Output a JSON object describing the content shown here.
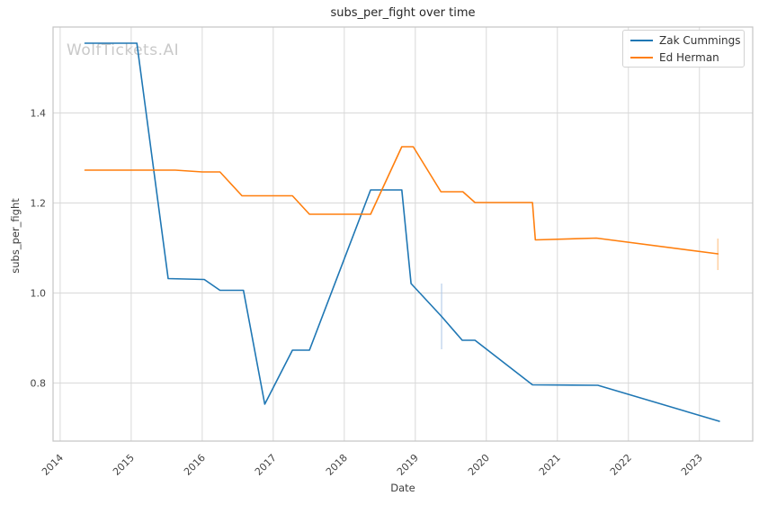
{
  "watermark": "WolfTickets.AI",
  "chart_data": {
    "type": "line",
    "title": "subs_per_fight over time",
    "xlabel": "Date",
    "ylabel": "subs_per_fight",
    "x_tick_labels": [
      "2014",
      "2015",
      "2016",
      "2017",
      "2018",
      "2019",
      "2020",
      "2021",
      "2022",
      "2023"
    ],
    "x_tick_values": [
      2014,
      2015,
      2016,
      2017,
      2018,
      2019,
      2020,
      2021,
      2022,
      2023
    ],
    "y_tick_labels": [
      "0.8",
      "1.0",
      "1.2",
      "1.4"
    ],
    "y_tick_values": [
      0.8,
      1.0,
      1.2,
      1.4
    ],
    "xlim": [
      2013.9,
      2023.75
    ],
    "ylim": [
      0.671,
      1.591
    ],
    "grid": true,
    "legend_position": "upper right",
    "grid_color": "#d9d9d9",
    "spine_color": "#c4c4c4",
    "series": [
      {
        "name": "Zak Cummings",
        "color": "#1f77b4",
        "x": [
          2014.35,
          2015.08,
          2015.52,
          2016.03,
          2016.25,
          2016.58,
          2016.88,
          2017.27,
          2017.51,
          2018.37,
          2018.81,
          2018.94,
          2019.37,
          2019.66,
          2019.84,
          2020.65,
          2021.57,
          2023.28
        ],
        "y": [
          1.555,
          1.555,
          1.032,
          1.03,
          1.006,
          1.006,
          0.753,
          0.873,
          0.873,
          1.229,
          1.229,
          1.021,
          0.948,
          0.895,
          0.895,
          0.796,
          0.795,
          0.715
        ]
      },
      {
        "name": "Ed Herman",
        "color": "#ff7f0e",
        "x": [
          2014.35,
          2015.62,
          2016.0,
          2016.25,
          2016.56,
          2017.27,
          2017.51,
          2018.37,
          2018.81,
          2018.97,
          2019.36,
          2019.67,
          2019.84,
          2020.65,
          2020.69,
          2021.55,
          2023.26
        ],
        "y": [
          1.273,
          1.273,
          1.269,
          1.269,
          1.216,
          1.216,
          1.175,
          1.175,
          1.325,
          1.325,
          1.225,
          1.225,
          1.201,
          1.201,
          1.118,
          1.122,
          1.087
        ]
      }
    ],
    "error_bars": [
      {
        "series": "Zak Cummings",
        "x": 2019.37,
        "y_low": 0.875,
        "y_high": 1.021,
        "color": "#aec7e8"
      },
      {
        "series": "Ed Herman",
        "x": 2023.26,
        "y_low": 1.051,
        "y_high": 1.121,
        "color": "#ffbb78"
      }
    ]
  }
}
